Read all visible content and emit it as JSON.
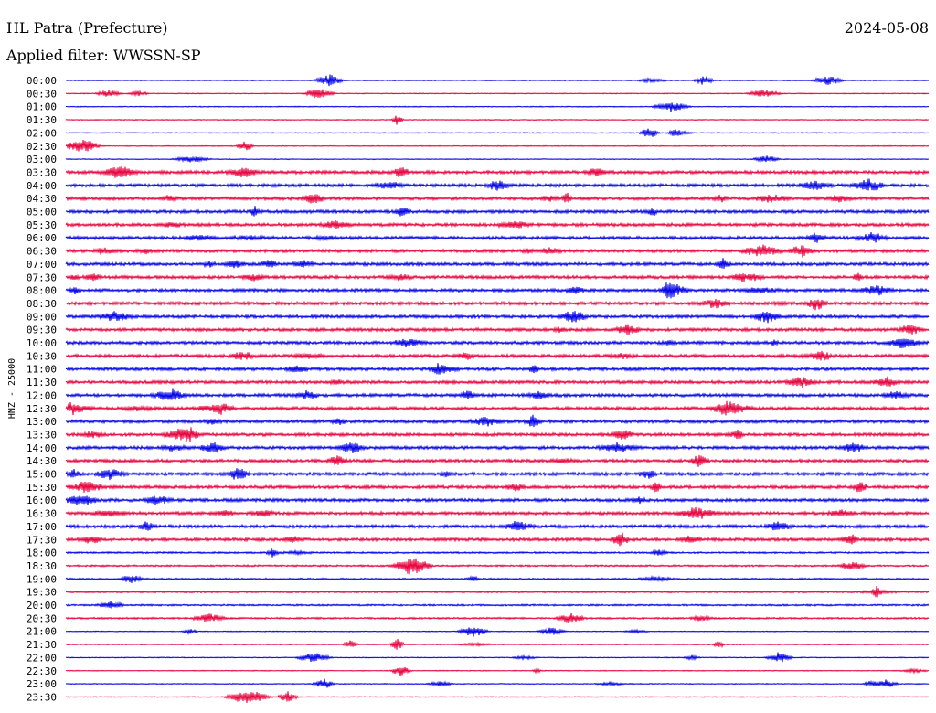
{
  "station": "HL Patra (Prefecture)",
  "date": "2024-05-08",
  "filter_label": "Applied filter: WWSSN-SP",
  "channel_label": "HNZ - 25000",
  "colors": {
    "odd_trace": "#0000e6",
    "even_trace": "#e6003c",
    "text": "#000000"
  },
  "chart_data": {
    "type": "line",
    "title": "HL Patra (Prefecture)",
    "subtitle": "Applied filter: WWSSN-SP",
    "ylabel": "HNZ - 25000",
    "rows": [
      "00:00",
      "00:30",
      "01:00",
      "01:30",
      "02:00",
      "02:30",
      "03:00",
      "03:30",
      "04:00",
      "04:30",
      "05:00",
      "05:30",
      "06:00",
      "06:30",
      "07:00",
      "07:30",
      "08:00",
      "08:30",
      "09:00",
      "09:30",
      "10:00",
      "10:30",
      "11:00",
      "11:30",
      "12:00",
      "12:30",
      "13:00",
      "13:30",
      "14:00",
      "14:30",
      "15:00",
      "15:30",
      "16:00",
      "16:30",
      "17:00",
      "17:30",
      "18:00",
      "18:30",
      "19:00",
      "19:30",
      "20:00",
      "20:30",
      "21:00",
      "21:30",
      "22:00",
      "22:30",
      "23:00",
      "23:30"
    ],
    "row_colors": [
      "blue",
      "red"
    ],
    "legend": "none",
    "grid": false
  }
}
